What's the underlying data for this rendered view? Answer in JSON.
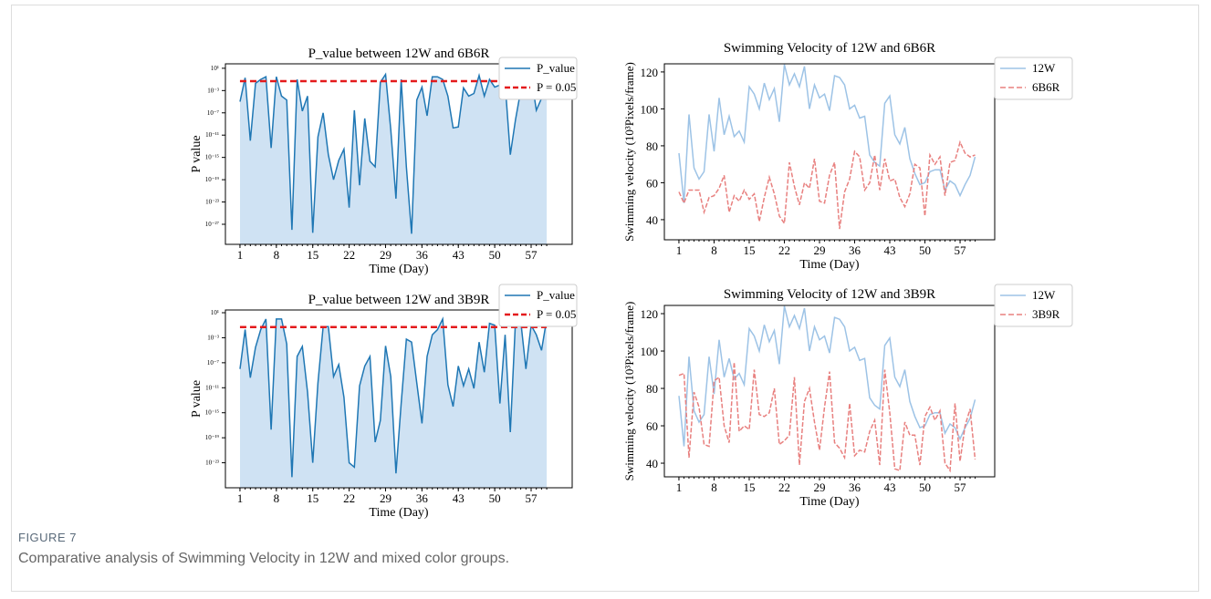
{
  "figure": {
    "label": "FIGURE 7",
    "caption": "Comparative analysis of Swimming Velocity in 12W and mixed color groups."
  },
  "chart_data": [
    {
      "type": "line",
      "title": "P_value between 12W and 6B6R",
      "xlabel": "Time  (Day)",
      "ylabel": "P value",
      "yscale": "log",
      "legend": "upper right",
      "x": [
        1,
        2,
        3,
        4,
        5,
        6,
        7,
        8,
        9,
        10,
        11,
        12,
        13,
        14,
        15,
        16,
        17,
        18,
        19,
        20,
        21,
        22,
        23,
        24,
        25,
        26,
        27,
        28,
        29,
        30,
        31,
        32,
        33,
        34,
        35,
        36,
        37,
        38,
        39,
        40,
        41,
        42,
        43,
        44,
        45,
        46,
        47,
        48,
        49,
        50,
        51,
        52,
        53,
        54,
        55,
        56,
        57,
        58,
        59,
        60
      ],
      "xlim": [
        -1.8,
        64.9
      ],
      "xticks": [
        1,
        8,
        15,
        22,
        29,
        36,
        43,
        50,
        57
      ],
      "ylim": [
        2.5e-31,
        63
      ],
      "yticks": [
        {
          "value": 10,
          "label": "10¹"
        },
        {
          "value": 0.001,
          "label": "10⁻³"
        },
        {
          "value": 1e-07,
          "label": "10⁻⁷"
        },
        {
          "value": 1e-11,
          "label": "10⁻¹¹"
        },
        {
          "value": 1e-15,
          "label": "10⁻¹⁵"
        },
        {
          "value": 1e-19,
          "label": "10⁻¹⁹"
        },
        {
          "value": 1e-23,
          "label": "10⁻²³"
        },
        {
          "value": 1e-27,
          "label": "10⁻²⁷"
        }
      ],
      "series": [
        {
          "name": "P_value",
          "color": "#1f77b4",
          "fill": "#cfe2f3",
          "values": [
            1e-05,
            0.2,
            1e-12,
            0.02,
            0.1,
            0.3,
            5e-14,
            0.3,
            0.0001,
            2e-05,
            1e-28,
            0.1,
            2e-07,
            0.0001,
            3e-29,
            5e-12,
            1e-07,
            3e-15,
            1e-19,
            3e-16,
            3e-14,
            1e-24,
            3e-07,
            1e-20,
            1e-08,
            2e-16,
            2e-17,
            0.03,
            0.8,
            1e-10,
            4e-23,
            0.1,
            2e-17,
            2e-29,
            2e-05,
            0.004,
            3e-08,
            0.3,
            0.3,
            0.1,
            0.0001,
            2e-10,
            3e-10,
            0.003,
            0.0001,
            0.0003,
            0.5,
            0.0001,
            0.1,
            0.004,
            0.01,
            0.02,
            3e-15,
            6e-09,
            0.001,
            0.3,
            0.5,
            3e-07,
            4e-05,
            0.2
          ]
        }
      ],
      "reference_lines": [
        {
          "name": "P = 0.05",
          "color": "#e41a1c",
          "value": 0.05
        }
      ]
    },
    {
      "type": "line",
      "title": "Swimming Velocity of 12W and 6B6R",
      "xlabel": "Time  (Day)",
      "ylabel": "Swimming velocity  (10³Pixels/frame)",
      "legend": "upper right",
      "x": [
        1,
        2,
        3,
        4,
        5,
        6,
        7,
        8,
        9,
        10,
        11,
        12,
        13,
        14,
        15,
        16,
        17,
        18,
        19,
        20,
        21,
        22,
        23,
        24,
        25,
        26,
        27,
        28,
        29,
        30,
        31,
        32,
        33,
        34,
        35,
        36,
        37,
        38,
        39,
        40,
        41,
        42,
        43,
        44,
        45,
        46,
        47,
        48,
        49,
        50,
        51,
        52,
        53,
        54,
        55,
        56,
        57,
        58,
        59,
        60
      ],
      "xlim": [
        -1.9,
        63.9
      ],
      "xticks": [
        1,
        8,
        15,
        22,
        29,
        36,
        43,
        50,
        57
      ],
      "ylim": [
        29.1,
        124.4
      ],
      "yticks": [
        40,
        60,
        80,
        100,
        120
      ],
      "series": [
        {
          "name": "12W",
          "color": "#9dc3e6",
          "values": [
            76,
            49,
            97,
            68,
            62,
            66,
            97,
            77,
            106,
            86,
            96,
            85,
            88,
            82,
            112,
            108,
            100,
            114,
            105,
            111,
            93,
            124,
            113,
            119,
            112,
            123,
            100,
            113,
            106,
            108,
            99,
            118,
            117,
            113,
            100,
            102,
            95,
            96,
            75,
            71,
            69,
            103,
            107,
            86,
            81,
            90,
            73,
            65,
            59,
            60,
            66,
            67,
            67,
            56,
            61,
            59,
            53,
            59,
            64,
            74
          ]
        },
        {
          "name": "6B6R",
          "color": "#e8807f",
          "dash": true,
          "values": [
            55,
            49,
            56,
            56,
            56,
            44,
            52,
            53,
            57,
            64,
            44,
            53,
            50,
            56,
            51,
            54,
            39,
            52,
            63,
            54,
            42,
            38,
            71,
            58,
            48,
            60,
            57,
            73,
            50,
            49,
            64,
            71,
            35,
            55,
            62,
            77,
            74,
            56,
            60,
            75,
            56,
            73,
            61,
            62,
            52,
            47,
            54,
            70,
            68,
            42,
            75,
            70,
            74,
            53,
            71,
            72,
            82,
            76,
            74,
            75
          ]
        }
      ]
    },
    {
      "type": "line",
      "title": "P_value between 12W and 3B9R",
      "xlabel": "Time  (Day)",
      "ylabel": "P value",
      "yscale": "log",
      "legend": "upper right",
      "x": [
        1,
        2,
        3,
        4,
        5,
        6,
        7,
        8,
        9,
        10,
        11,
        12,
        13,
        14,
        15,
        16,
        17,
        18,
        19,
        20,
        21,
        22,
        23,
        24,
        25,
        26,
        27,
        28,
        29,
        30,
        31,
        32,
        33,
        34,
        35,
        36,
        37,
        38,
        39,
        40,
        41,
        42,
        43,
        44,
        45,
        46,
        47,
        48,
        49,
        50,
        51,
        52,
        53,
        54,
        55,
        56,
        57,
        58,
        59,
        60
      ],
      "xlim": [
        -1.8,
        64.9
      ],
      "xticks": [
        1,
        8,
        15,
        22,
        29,
        36,
        43,
        50,
        57
      ],
      "ylim": [
        1e-27,
        27.5
      ],
      "yticks": [
        {
          "value": 10,
          "label": "10¹"
        },
        {
          "value": 0.001,
          "label": "10⁻³"
        },
        {
          "value": 1e-07,
          "label": "10⁻⁷"
        },
        {
          "value": 1e-11,
          "label": "10⁻¹¹"
        },
        {
          "value": 1e-15,
          "label": "10⁻¹⁵"
        },
        {
          "value": 1e-19,
          "label": "10⁻¹⁹"
        },
        {
          "value": 1e-23,
          "label": "10⁻²³"
        }
      ],
      "series": [
        {
          "name": "P_value",
          "color": "#1f77b4",
          "fill": "#cfe2f3",
          "values": [
            1e-08,
            0.02,
            4e-10,
            3e-05,
            0.02,
            1,
            2e-18,
            1,
            1,
            0.0001,
            5e-26,
            1e-06,
            4e-05,
            2e-12,
            1e-23,
            6e-11,
            0.06,
            0.06,
            6e-10,
            5e-08,
            3e-13,
            1e-23,
            2e-24,
            2e-11,
            3e-08,
            1e-06,
            2e-20,
            6e-17,
            5e-05,
            6e-10,
            2e-25,
            3e-14,
            0.0006,
            0.0002,
            6e-11,
            2e-17,
            1e-06,
            0.003,
            0.02,
            1,
            3e-11,
            1e-14,
            3e-08,
            2e-11,
            1e-08,
            8e-12,
            0.0002,
            3e-09,
            0.2,
            0.1,
            3e-14,
            0.003,
            8e-19,
            0.6,
            0.5,
            1e-08,
            0.1,
            0.003,
            1e-05,
            1
          ]
        }
      ],
      "reference_lines": [
        {
          "name": "P = 0.05",
          "color": "#e41a1c",
          "value": 0.05
        }
      ]
    },
    {
      "type": "line",
      "title": "Swimming Velocity of 12W and 3B9R",
      "xlabel": "Time  (Day)",
      "ylabel": "Swimming velocity  (10³Pixels/frame)",
      "legend": "upper right",
      "x": [
        1,
        2,
        3,
        4,
        5,
        6,
        7,
        8,
        9,
        10,
        11,
        12,
        13,
        14,
        15,
        16,
        17,
        18,
        19,
        20,
        21,
        22,
        23,
        24,
        25,
        26,
        27,
        28,
        29,
        30,
        31,
        32,
        33,
        34,
        35,
        36,
        37,
        38,
        39,
        40,
        41,
        42,
        43,
        44,
        45,
        46,
        47,
        48,
        49,
        50,
        51,
        52,
        53,
        54,
        55,
        56,
        57,
        58,
        59,
        60
      ],
      "xlim": [
        -1.9,
        63.9
      ],
      "xticks": [
        1,
        8,
        15,
        22,
        29,
        36,
        43,
        50,
        57
      ],
      "ylim": [
        32.7,
        124.4
      ],
      "yticks": [
        40,
        60,
        80,
        100,
        120
      ],
      "series": [
        {
          "name": "12W",
          "color": "#9dc3e6",
          "values": [
            76,
            49,
            97,
            68,
            62,
            66,
            97,
            77,
            106,
            86,
            96,
            85,
            88,
            82,
            112,
            108,
            100,
            114,
            105,
            111,
            93,
            124,
            113,
            119,
            112,
            123,
            100,
            113,
            106,
            108,
            99,
            118,
            117,
            113,
            100,
            102,
            95,
            96,
            75,
            71,
            69,
            103,
            107,
            86,
            81,
            90,
            73,
            65,
            59,
            60,
            66,
            67,
            67,
            56,
            61,
            59,
            53,
            59,
            64,
            74
          ]
        },
        {
          "name": "3B9R",
          "color": "#e8807f",
          "dash": true,
          "values": [
            87,
            88,
            43,
            78,
            70,
            50,
            49,
            84,
            86,
            60,
            51,
            94,
            57,
            60,
            58,
            90,
            66,
            65,
            67,
            80,
            50,
            52,
            55,
            86,
            39,
            73,
            80,
            62,
            47,
            70,
            89,
            51,
            48,
            43,
            72,
            44,
            47,
            46,
            57,
            63,
            39,
            90,
            67,
            37,
            36,
            62,
            55,
            55,
            39,
            65,
            70,
            63,
            68,
            40,
            36,
            72,
            41,
            60,
            69,
            42
          ]
        }
      ]
    }
  ]
}
